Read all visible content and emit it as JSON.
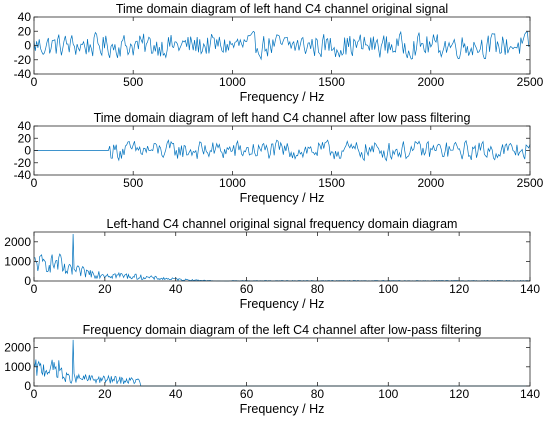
{
  "chart_data": [
    {
      "type": "line",
      "title": "Time domain diagram of left hand C4 channel original signal",
      "xlabel": "Frequency / Hz",
      "ylabel": "",
      "xlim": [
        0,
        2500
      ],
      "ylim": [
        -40,
        40
      ],
      "xticks": [
        0,
        500,
        1000,
        1500,
        2000,
        2500
      ],
      "yticks": [
        40,
        20,
        0,
        -20,
        -40
      ],
      "grid": false,
      "series_color": "#0072BD",
      "signal": {
        "x_start": 0,
        "x_end": 2500,
        "points": 380,
        "active_from": 0,
        "cutoff_at": null,
        "amplitude": 12,
        "typical_range": [
          -25,
          22
        ]
      }
    },
    {
      "type": "line",
      "title": "Time domain diagram of left hand C4 channel after low pass filtering",
      "xlabel": "Frequency / Hz",
      "ylabel": "",
      "xlim": [
        0,
        2500
      ],
      "ylim": [
        -40,
        40
      ],
      "xticks": [
        0,
        500,
        1000,
        1500,
        2000,
        2500
      ],
      "yticks": [
        40,
        20,
        0,
        -20,
        -40
      ],
      "grid": false,
      "series_color": "#0072BD",
      "signal": {
        "x_start": 0,
        "x_end": 2500,
        "points": 380,
        "active_from": 380,
        "cutoff_at": null,
        "amplitude": 11,
        "typical_range": [
          -22,
          20
        ]
      }
    },
    {
      "type": "line",
      "title": "Left-hand C4 channel original signal frequency domain diagram",
      "xlabel": "Frequency / Hz",
      "ylabel": "",
      "xlim": [
        0,
        140
      ],
      "ylim": [
        0,
        2500
      ],
      "xticks": [
        0,
        20,
        40,
        60,
        80,
        100,
        120,
        140
      ],
      "yticks": [
        2000,
        1000,
        0
      ],
      "grid": false,
      "series_color": "#0072BD",
      "spectrum": {
        "x_end": 140,
        "points": 520,
        "peak": {
          "x": 11,
          "y": 2400
        },
        "band_high_until": 8,
        "band_high_level": 1200,
        "decay_to": 55,
        "cutoff_at": null
      }
    },
    {
      "type": "line",
      "title": "Frequency domain diagram of the left C4 channel after low-pass filtering",
      "xlabel": "Frequency / Hz",
      "ylabel": "",
      "xlim": [
        0,
        140
      ],
      "ylim": [
        0,
        2500
      ],
      "xticks": [
        0,
        20,
        40,
        60,
        80,
        100,
        120,
        140
      ],
      "yticks": [
        2000,
        1000,
        0
      ],
      "grid": false,
      "series_color": "#0072BD",
      "spectrum": {
        "x_end": 140,
        "points": 520,
        "peak": {
          "x": 11,
          "y": 2400
        },
        "band_high_until": 8,
        "band_high_level": 1200,
        "decay_to": 30,
        "cutoff_at": 30
      }
    }
  ]
}
